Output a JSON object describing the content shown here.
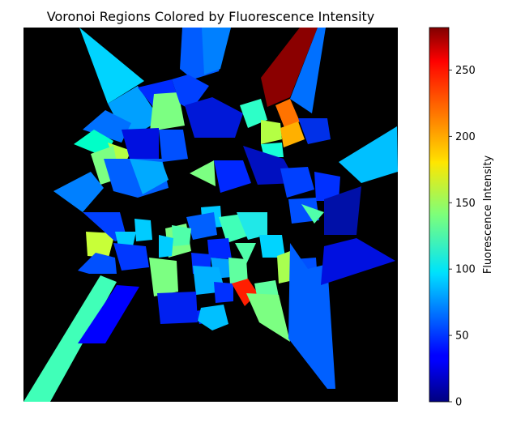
{
  "chart_data": {
    "type": "heatmap",
    "subtype": "voronoi",
    "title": "Voronoi Regions Colored by Fluorescence Intensity",
    "colormap": "jet",
    "background_color": "#000000",
    "axes_visible": false,
    "colorbar": {
      "label": "Fluorescence Intensity",
      "position": "right",
      "range": [
        0,
        282
      ],
      "ticks": [
        0,
        50,
        100,
        150,
        200,
        250
      ],
      "tick_labels": [
        "0",
        "50",
        "100",
        "150",
        "200",
        "250"
      ]
    }
  }
}
